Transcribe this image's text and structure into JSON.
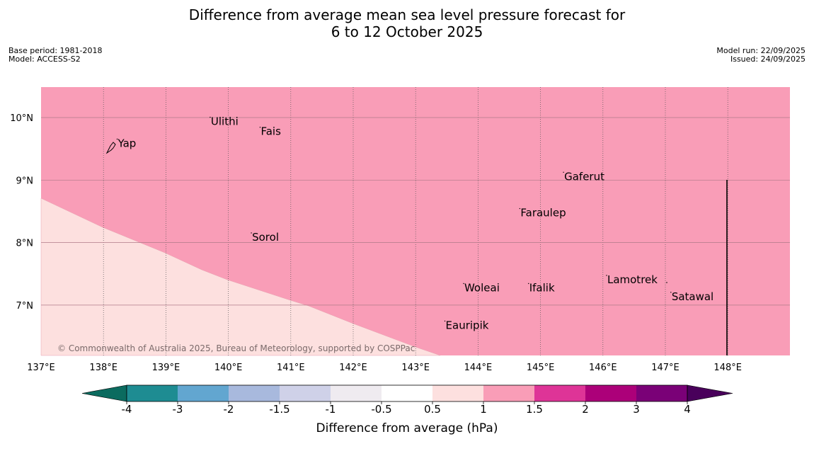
{
  "title": {
    "line1": "Difference from average mean sea level pressure forecast for",
    "line2": "6 to 12 October 2025"
  },
  "meta_left": {
    "base_period": "Base period: 1981-2018",
    "model": "Model: ACCESS-S2"
  },
  "meta_right": {
    "model_run": "Model run: 22/09/2025",
    "issued": "Issued: 24/09/2025"
  },
  "map": {
    "lon_range": [
      137,
      149
    ],
    "lat_range": [
      6.2,
      10.5
    ],
    "lon_ticks": [
      "137°E",
      "138°E",
      "139°E",
      "140°E",
      "141°E",
      "142°E",
      "143°E",
      "144°E",
      "145°E",
      "146°E",
      "147°E",
      "148°E"
    ],
    "lat_ticks": [
      "10°N",
      "9°N",
      "8°N",
      "7°N"
    ],
    "places": [
      {
        "name": "Yap",
        "lon": 138.23,
        "lat": 9.53
      },
      {
        "name": "Ulithi",
        "lon": 139.72,
        "lat": 9.88
      },
      {
        "name": "Fais",
        "lon": 140.52,
        "lat": 9.72
      },
      {
        "name": "Gaferut",
        "lon": 145.38,
        "lat": 9.0
      },
      {
        "name": "Faraulep",
        "lon": 144.68,
        "lat": 8.42
      },
      {
        "name": "Sorol",
        "lon": 140.38,
        "lat": 8.03
      },
      {
        "name": "Lamotrek",
        "lon": 146.07,
        "lat": 7.35
      },
      {
        "name": "Woleai",
        "lon": 143.78,
        "lat": 7.22
      },
      {
        "name": "Ifalik",
        "lon": 144.82,
        "lat": 7.22
      },
      {
        "name": "Satawal",
        "lon": 147.1,
        "lat": 7.08
      },
      {
        "name": "Eauripik",
        "lon": 143.48,
        "lat": 6.62
      }
    ],
    "copyright": "© Commonwealth of Australia 2025, Bureau of Meteorology, supported by COSPPac",
    "high_anomaly_color": "#f99db7",
    "low_anomaly_color": "#fde0df"
  },
  "colorbar": {
    "title": "Difference from average (hPa)",
    "ticks": [
      "-4",
      "-3",
      "-2",
      "-1.5",
      "-1",
      "-0.5",
      "0.5",
      "1",
      "1.5",
      "2",
      "3",
      "4"
    ],
    "colors": [
      "#0b6b5f",
      "#1e8c92",
      "#62a6d0",
      "#a8b9dd",
      "#cfd1e8",
      "#efebf0",
      "#ffffff",
      "#fde0df",
      "#f99db7",
      "#de3497",
      "#ac0079",
      "#7a0177",
      "#49005b"
    ]
  }
}
